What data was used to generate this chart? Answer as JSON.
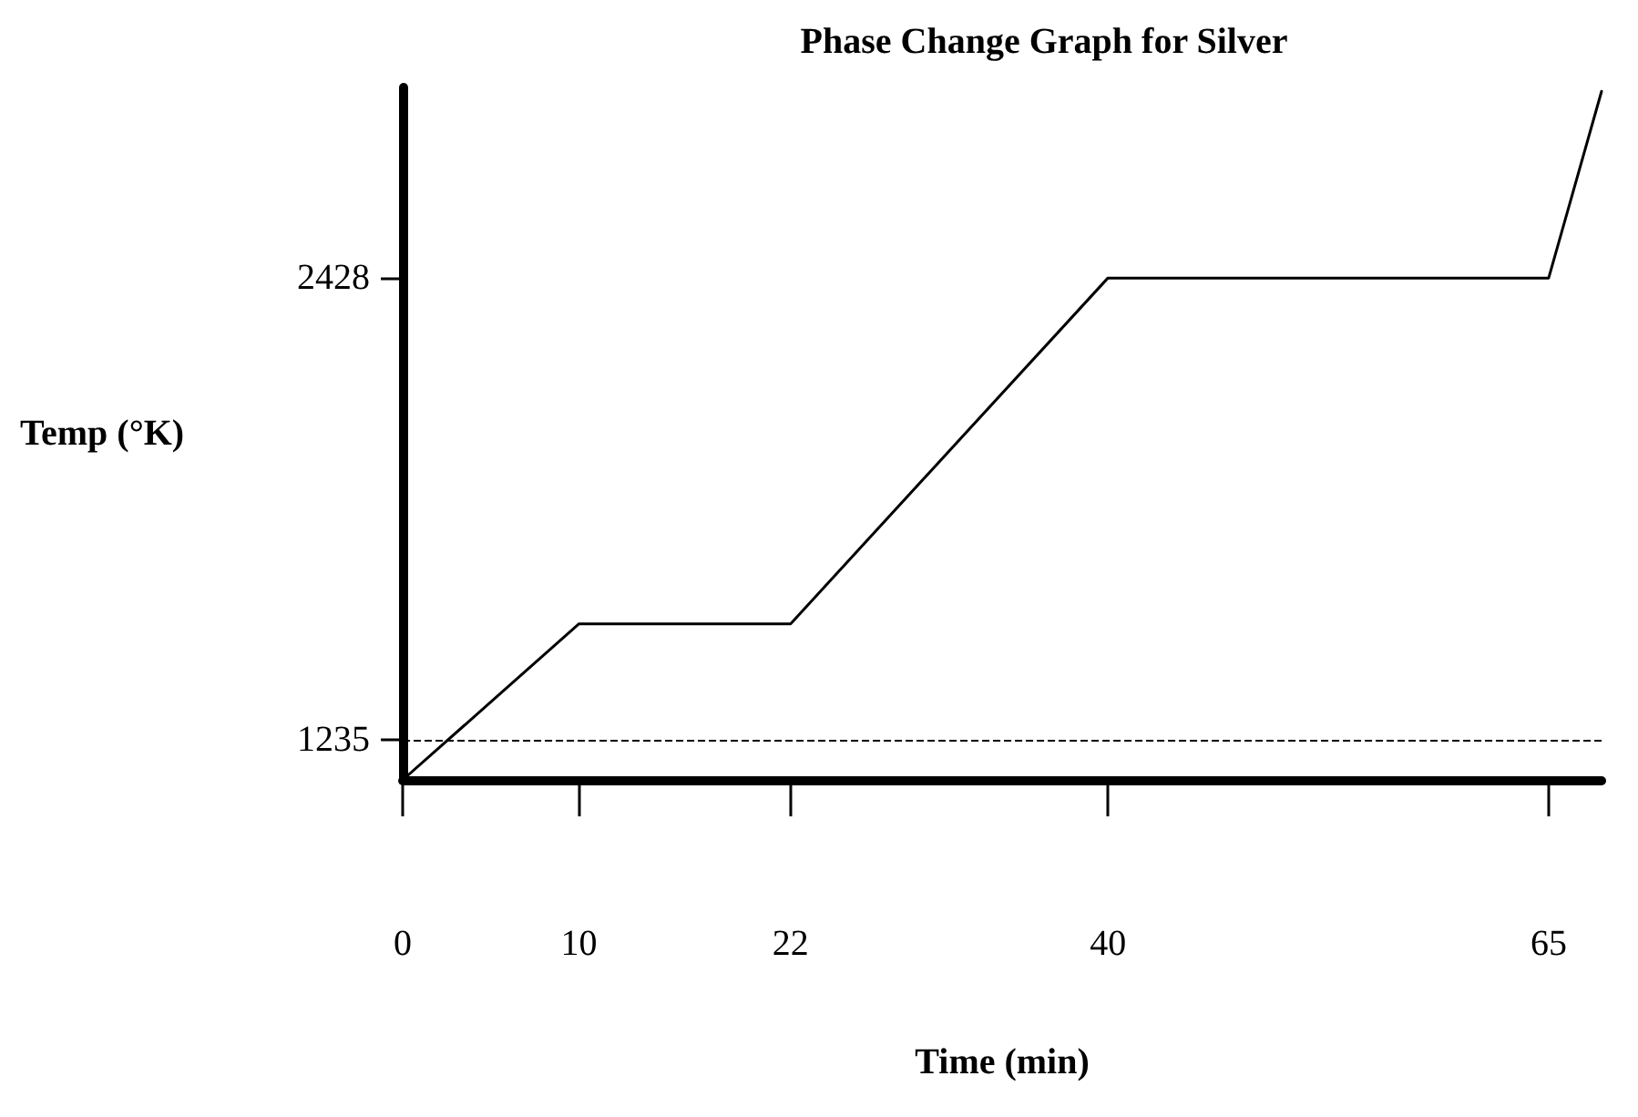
{
  "chart_data": {
    "type": "line",
    "title": "Phase Change Graph for Silver",
    "xlabel": "Time (min)",
    "ylabel": "Temp (°K)",
    "x": [
      0,
      10,
      22,
      40,
      65,
      68
    ],
    "series": [
      {
        "color": "#000000",
        "values": [
          1132,
          1535,
          1535,
          2428,
          2428,
          2910
        ]
      }
    ],
    "xlim": [
      0,
      68
    ],
    "xticks": [
      0,
      10,
      22,
      40,
      65
    ],
    "ylim": [
      1132,
      2920
    ],
    "yticks": [
      1235,
      2428
    ],
    "ref_lines": [
      {
        "axis": "y",
        "value": 1235,
        "color": "#000000",
        "line_style": "dashed"
      }
    ],
    "grid": false,
    "marker": "none",
    "line_style": "solid"
  }
}
